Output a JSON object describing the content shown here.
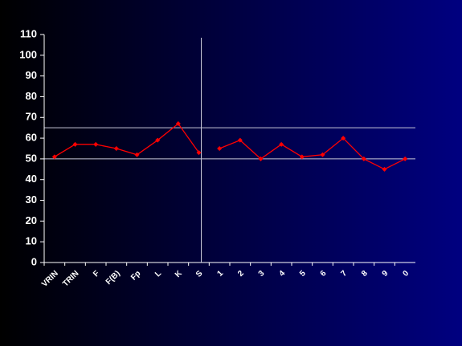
{
  "chart_data": {
    "type": "line",
    "categories": [
      "VRIN",
      "TRIN",
      "F",
      "F(B)",
      "Fp",
      "L",
      "K",
      "S",
      "1",
      "2",
      "3",
      "4",
      "5",
      "6",
      "7",
      "8",
      "9",
      "0"
    ],
    "values": [
      51,
      57,
      57,
      55,
      52,
      59,
      67,
      53,
      55,
      59,
      50,
      57,
      51,
      52,
      60,
      50,
      45,
      50
    ],
    "color": "#ff0000",
    "divider_after": 7,
    "reference_lines": [
      50,
      65
    ],
    "ylim": [
      0,
      110
    ],
    "yticks": [
      0,
      10,
      20,
      30,
      40,
      50,
      60,
      70,
      80,
      90,
      100,
      110
    ]
  }
}
